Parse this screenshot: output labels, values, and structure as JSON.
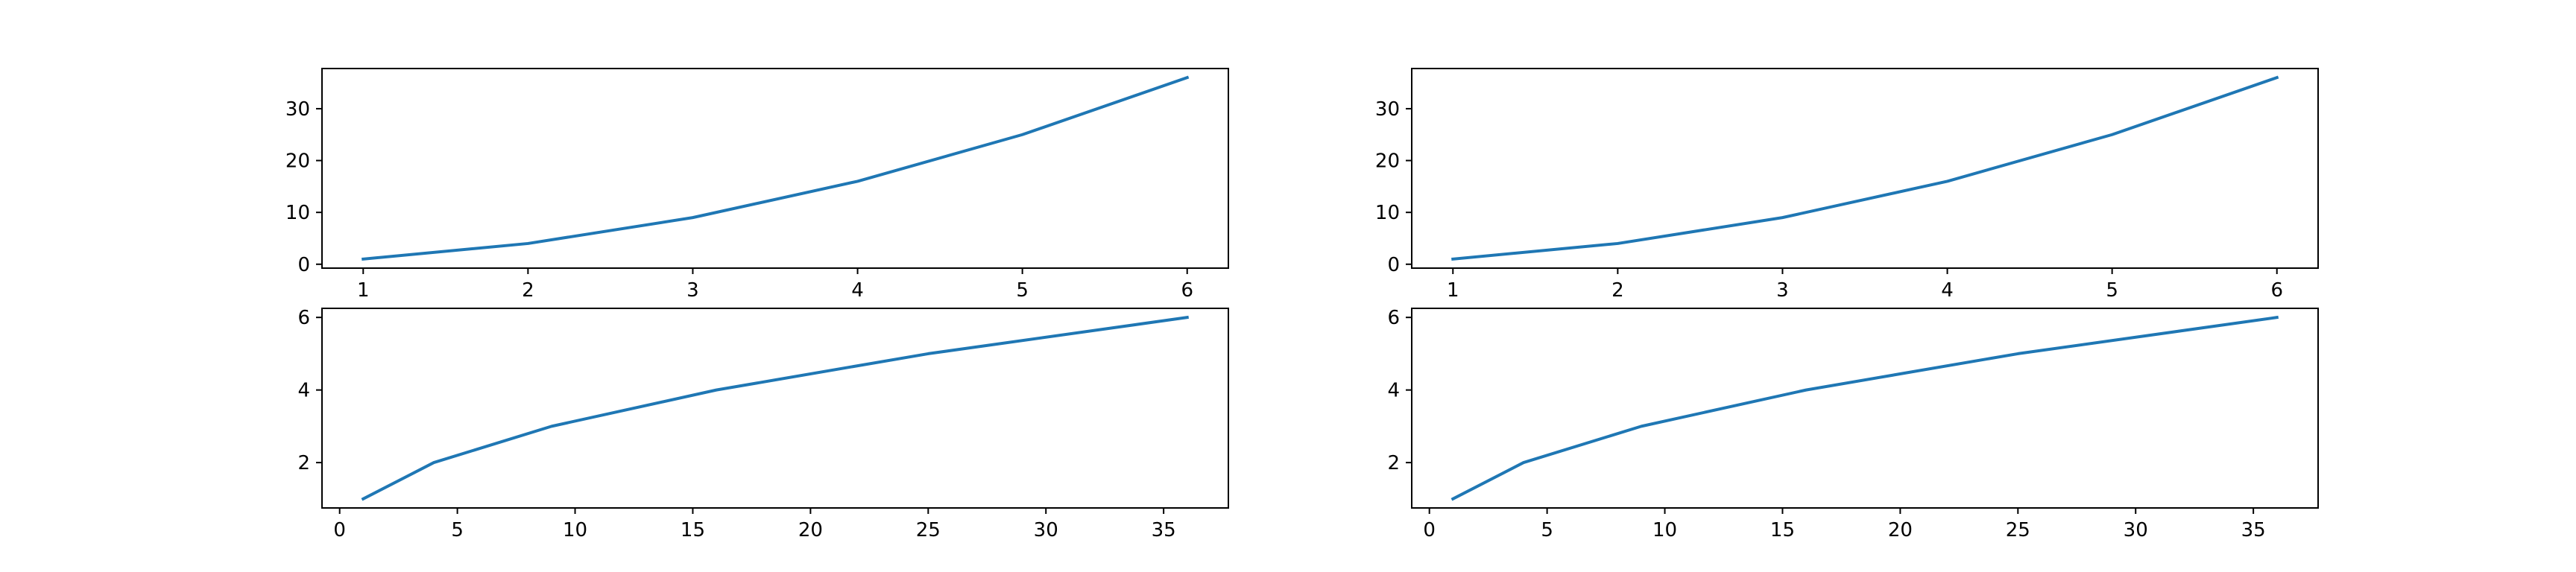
{
  "figure": {
    "background": "#ffffff",
    "line_color": "#1f77b4"
  },
  "chart_data": [
    {
      "type": "line",
      "panel": "top-left",
      "title": "",
      "xlabel": "",
      "ylabel": "",
      "x": [
        1,
        2,
        3,
        4,
        5,
        6
      ],
      "series": [
        {
          "values": [
            1,
            4,
            9,
            16,
            25,
            36
          ]
        }
      ],
      "xlim": [
        0.75,
        6.25
      ],
      "ylim": [
        -0.75,
        37.75
      ],
      "xticks": [
        1,
        2,
        3,
        4,
        5,
        6
      ],
      "yticks": [
        0,
        10,
        20,
        30
      ],
      "grid": false,
      "legend": "none"
    },
    {
      "type": "line",
      "panel": "top-right",
      "title": "",
      "xlabel": "",
      "ylabel": "",
      "x": [
        1,
        2,
        3,
        4,
        5,
        6
      ],
      "series": [
        {
          "values": [
            1,
            4,
            9,
            16,
            25,
            36
          ]
        }
      ],
      "xlim": [
        0.75,
        6.25
      ],
      "ylim": [
        -0.75,
        37.75
      ],
      "xticks": [
        1,
        2,
        3,
        4,
        5,
        6
      ],
      "yticks": [
        0,
        10,
        20,
        30
      ],
      "grid": false,
      "legend": "none"
    },
    {
      "type": "line",
      "panel": "bottom-left",
      "title": "",
      "xlabel": "",
      "ylabel": "",
      "x": [
        1,
        4,
        9,
        16,
        25,
        36
      ],
      "series": [
        {
          "values": [
            1,
            2,
            3,
            4,
            5,
            6
          ]
        }
      ],
      "xlim": [
        -0.75,
        37.75
      ],
      "ylim": [
        0.75,
        6.25
      ],
      "xticks": [
        0,
        5,
        10,
        15,
        20,
        25,
        30,
        35
      ],
      "yticks": [
        2,
        4,
        6
      ],
      "grid": false,
      "legend": "none"
    },
    {
      "type": "line",
      "panel": "bottom-right",
      "title": "",
      "xlabel": "",
      "ylabel": "",
      "x": [
        1,
        4,
        9,
        16,
        25,
        36
      ],
      "series": [
        {
          "values": [
            1,
            2,
            3,
            4,
            5,
            6
          ]
        }
      ],
      "xlim": [
        -0.75,
        37.75
      ],
      "ylim": [
        0.75,
        6.25
      ],
      "xticks": [
        0,
        5,
        10,
        15,
        20,
        25,
        30,
        35
      ],
      "yticks": [
        2,
        4,
        6
      ],
      "grid": false,
      "legend": "none"
    }
  ]
}
